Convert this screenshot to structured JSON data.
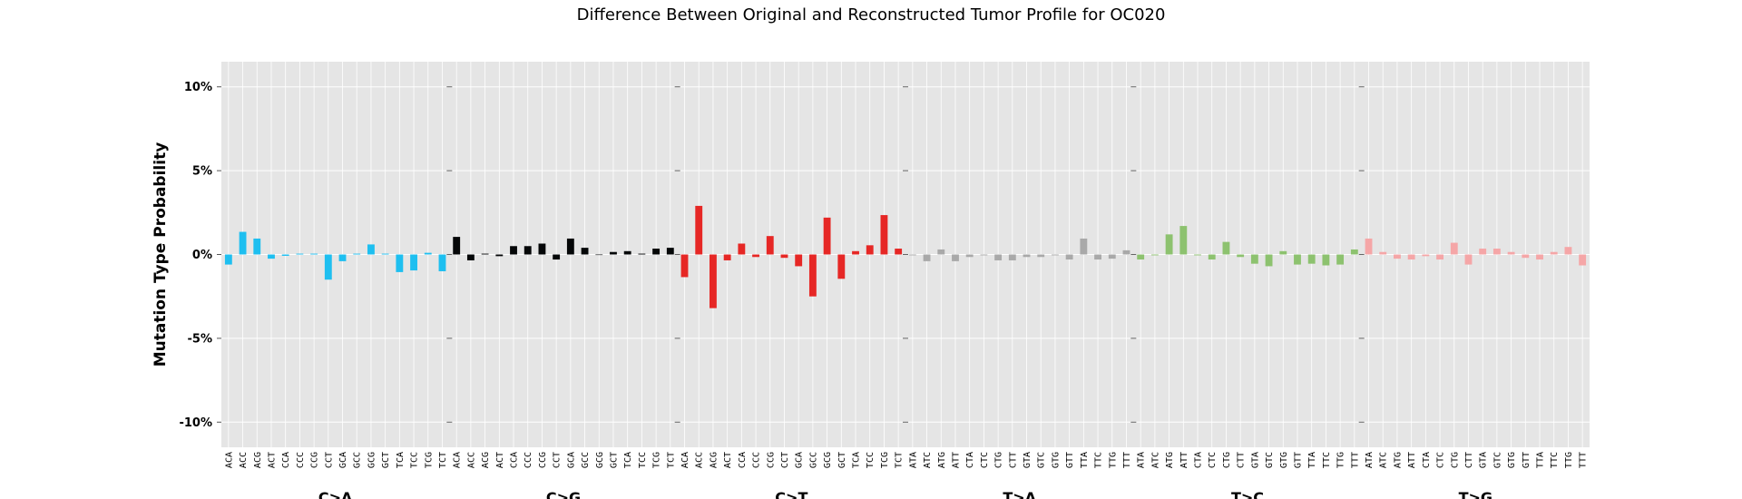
{
  "chart_data": {
    "type": "bar",
    "title": "Difference Between Original and Reconstructed Tumor Profile for OC020",
    "ylabel": "Mutation Type Probability",
    "xlabel": "",
    "ylim": [
      -11.5,
      11.5
    ],
    "yticks": [
      -10,
      -5,
      0,
      5,
      10
    ],
    "ytick_labels": [
      "-10%",
      "-5%",
      "0%",
      "5%",
      "10%"
    ],
    "grid": true,
    "background": "#E5E5E5",
    "grid_color": "#FFFFFF",
    "groups": [
      {
        "name": "C>A",
        "color": "#1EBFF0",
        "contexts": [
          "ACA",
          "ACC",
          "ACG",
          "ACT",
          "CCA",
          "CCC",
          "CCG",
          "CCT",
          "GCA",
          "GCC",
          "GCG",
          "GCT",
          "TCA",
          "TCC",
          "TCG",
          "TCT"
        ],
        "values": [
          -0.6,
          1.35,
          0.95,
          -0.25,
          -0.08,
          0.05,
          0.05,
          -1.5,
          -0.4,
          0.05,
          0.6,
          0.05,
          -1.05,
          -0.95,
          0.1,
          -1.0
        ]
      },
      {
        "name": "C>G",
        "color": "#050708",
        "contexts": [
          "ACA",
          "ACC",
          "ACG",
          "ACT",
          "CCA",
          "CCC",
          "CCG",
          "CCT",
          "GCA",
          "GCC",
          "GCG",
          "GCT",
          "TCA",
          "TCC",
          "TCG",
          "TCT"
        ],
        "values": [
          1.05,
          -0.35,
          0.05,
          -0.1,
          0.5,
          0.5,
          0.65,
          -0.3,
          0.95,
          0.4,
          0.0,
          0.15,
          0.2,
          0.05,
          0.35,
          0.4
        ]
      },
      {
        "name": "C>T",
        "color": "#E62725",
        "contexts": [
          "ACA",
          "ACC",
          "ACG",
          "ACT",
          "CCA",
          "CCC",
          "CCG",
          "CCT",
          "GCA",
          "GCC",
          "GCG",
          "GCT",
          "TCA",
          "TCC",
          "TCG",
          "TCT"
        ],
        "values": [
          -1.35,
          2.9,
          -3.2,
          -0.35,
          0.65,
          -0.15,
          1.1,
          -0.2,
          -0.7,
          -2.5,
          2.2,
          -1.45,
          0.2,
          0.55,
          2.35,
          0.35
        ]
      },
      {
        "name": "T>A",
        "color": "#A9A9A9",
        "contexts": [
          "ATA",
          "ATC",
          "ATG",
          "ATT",
          "CTA",
          "CTC",
          "CTG",
          "CTT",
          "GTA",
          "GTC",
          "GTG",
          "GTT",
          "TTA",
          "TTC",
          "TTG",
          "TTT"
        ],
        "values": [
          -0.05,
          -0.4,
          0.3,
          -0.4,
          -0.15,
          -0.05,
          -0.35,
          -0.35,
          -0.15,
          -0.15,
          -0.05,
          -0.3,
          0.95,
          -0.3,
          -0.25,
          0.25
        ]
      },
      {
        "name": "T>C",
        "color": "#8DC26F",
        "contexts": [
          "ATA",
          "ATC",
          "ATG",
          "ATT",
          "CTA",
          "CTC",
          "CTG",
          "CTT",
          "GTA",
          "GTC",
          "GTG",
          "GTT",
          "TTA",
          "TTC",
          "TTG",
          "TTT"
        ],
        "values": [
          -0.3,
          -0.05,
          1.2,
          1.7,
          -0.05,
          -0.3,
          0.75,
          -0.15,
          -0.55,
          -0.7,
          0.2,
          -0.6,
          -0.55,
          -0.65,
          -0.6,
          0.3
        ]
      },
      {
        "name": "T>G",
        "color": "#F5A6A7",
        "contexts": [
          "ATA",
          "ATC",
          "ATG",
          "ATT",
          "CTA",
          "CTC",
          "CTG",
          "CTT",
          "GTA",
          "GTC",
          "GTG",
          "GTT",
          "TTA",
          "TTC",
          "TTG",
          "TTT"
        ],
        "values": [
          0.95,
          0.15,
          -0.25,
          -0.3,
          -0.1,
          -0.3,
          0.7,
          -0.6,
          0.35,
          0.35,
          0.15,
          -0.2,
          -0.3,
          0.15,
          0.45,
          -0.65
        ]
      }
    ]
  }
}
